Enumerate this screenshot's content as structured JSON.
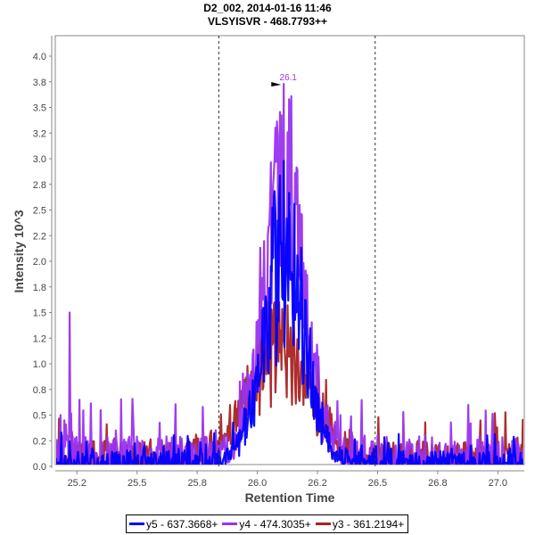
{
  "chart_data": {
    "type": "line",
    "title": "D2_002, 2014-01-16 11:46",
    "subtitle": "VLSYISVR - 468.7793++",
    "xlabel": "Retention Time",
    "ylabel": "Intensity 10^3",
    "xlim": [
      25.16,
      27.11
    ],
    "ylim": [
      0.0,
      4.2
    ],
    "x_ticks": [
      25.25,
      25.5,
      25.75,
      26.0,
      26.25,
      26.5,
      26.75,
      27.0
    ],
    "x_tick_labels": [
      "25.2",
      "25.5",
      "25.8",
      "26.0",
      "26.2",
      "26.5",
      "26.8",
      "27.0"
    ],
    "y_ticks": [
      0.0,
      0.25,
      0.5,
      0.75,
      1.0,
      1.25,
      1.5,
      1.75,
      2.0,
      2.25,
      2.5,
      2.75,
      3.0,
      3.25,
      3.5,
      3.75,
      4.0
    ],
    "y_tick_labels": [
      "0.0",
      "0.2",
      "0.5",
      "0.8",
      "1.0",
      "1.2",
      "1.5",
      "1.8",
      "2.0",
      "2.2",
      "2.5",
      "2.8",
      "3.0",
      "3.2",
      "3.5",
      "3.8",
      "4.0"
    ],
    "grid": false,
    "legend_position": "bottom",
    "integration_boundaries": [
      25.84,
      26.49
    ],
    "peak_annotation": {
      "label": "26.1",
      "x": 26.11,
      "y": 3.73,
      "color": "#9933ee"
    },
    "series": [
      {
        "name": "y5 - 637.3668+",
        "color": "#0000ff",
        "peak_rt": 26.11,
        "peak_height": 2.98,
        "baseline_noise": 0.15
      },
      {
        "name": "y4 - 474.3035+",
        "color": "#9933ee",
        "peak_rt": 26.11,
        "peak_height": 3.73,
        "baseline_noise": 0.3
      },
      {
        "name": "y3 - 361.2194+",
        "color": "#aa2222",
        "peak_rt": 26.09,
        "peak_height": 1.6,
        "baseline_noise": 0.25
      }
    ]
  }
}
